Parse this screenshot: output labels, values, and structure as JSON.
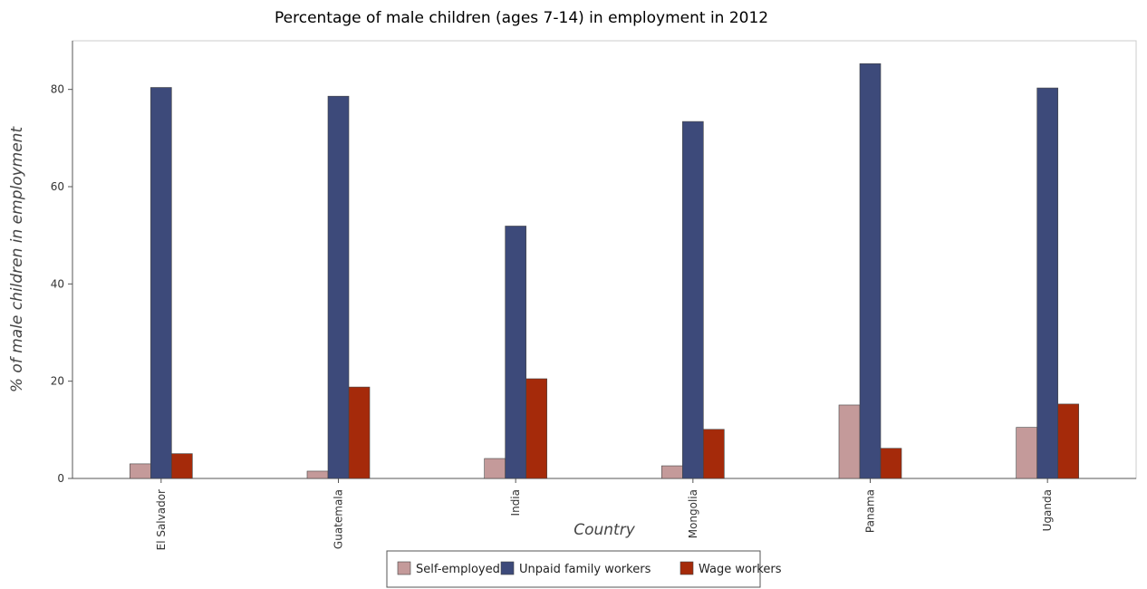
{
  "chart_data": {
    "type": "bar",
    "title": "Percentage of male children (ages 7-14) in employment in 2012",
    "xlabel": "Country",
    "ylabel": "% of male children in employment",
    "ylim": [
      0,
      90
    ],
    "yticks": [
      0,
      20,
      40,
      60,
      80
    ],
    "categories": [
      "El Salvador",
      "Guatemala",
      "India",
      "Mongolia",
      "Panama",
      "Uganda"
    ],
    "series": [
      {
        "name": "Self-employed",
        "color": "#c49a9a",
        "values": [
          3.0,
          1.5,
          4.1,
          2.6,
          15.1,
          10.5
        ]
      },
      {
        "name": "Unpaid family workers",
        "color": "#3d4a7a",
        "values": [
          80.4,
          78.6,
          51.9,
          73.4,
          85.3,
          80.3
        ]
      },
      {
        "name": "Wage workers",
        "color": "#a52a0a",
        "values": [
          5.1,
          18.8,
          20.5,
          10.1,
          6.2,
          15.3
        ]
      }
    ],
    "legend_position": "bottom",
    "grid": false
  }
}
